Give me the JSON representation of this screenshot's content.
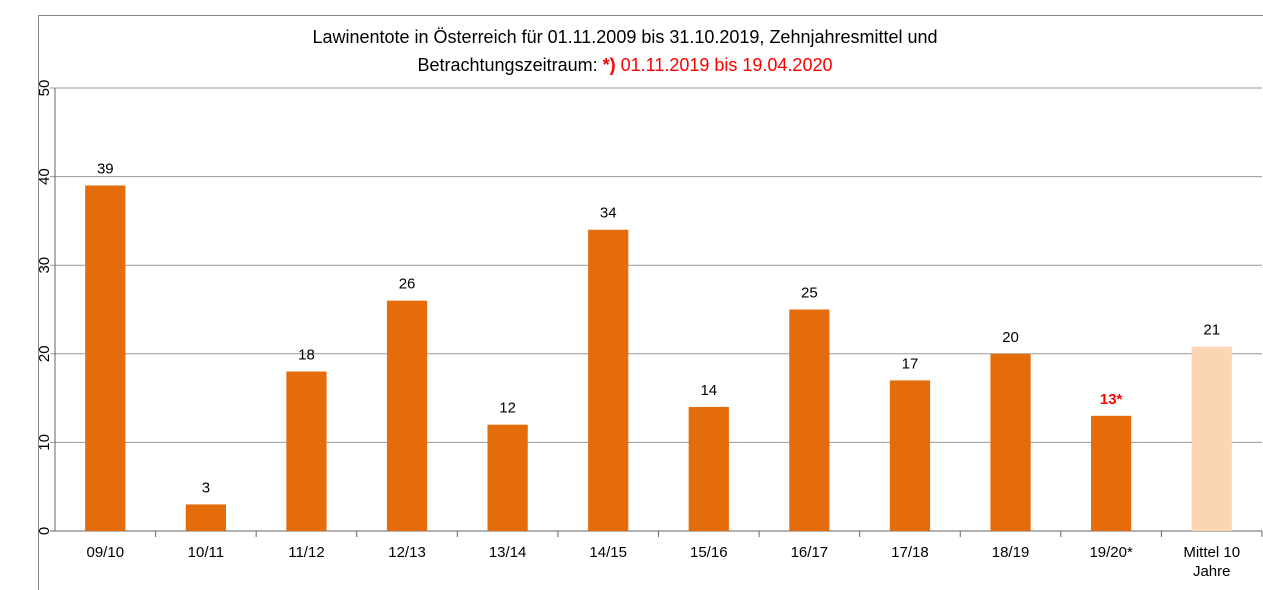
{
  "chart_data": {
    "type": "bar",
    "title": [
      "Lawinentote in Österreich für 01.11.2009 bis 31.10.2019, Zehnjahresmittel und",
      "Betrachtungszeitraum:"
    ],
    "note": {
      "marker": "*)",
      "text": "01.11.2019 bis 19.04.2020",
      "color": "#ff0000"
    },
    "categories": [
      "09/10",
      "10/11",
      "11/12",
      "12/13",
      "13/14",
      "14/15",
      "15/16",
      "16/17",
      "17/18",
      "18/19",
      "19/20*",
      "Mittel 10 Jahre"
    ],
    "values": [
      39,
      3,
      18,
      26,
      12,
      34,
      14,
      25,
      17,
      20,
      13,
      20.8
    ],
    "value_labels": [
      "39",
      "3",
      "18",
      "26",
      "12",
      "34",
      "14",
      "25",
      "17",
      "20",
      "13*",
      "21"
    ],
    "colors": [
      "#e46c0a",
      "#e46c0a",
      "#e46c0a",
      "#e46c0a",
      "#e46c0a",
      "#e46c0a",
      "#e46c0a",
      "#e46c0a",
      "#e46c0a",
      "#e46c0a",
      "#e46c0a",
      "#fcd5b5"
    ],
    "value_label_colors": [
      "#000000",
      "#000000",
      "#000000",
      "#000000",
      "#000000",
      "#000000",
      "#000000",
      "#000000",
      "#000000",
      "#000000",
      "#ff0000",
      "#000000"
    ],
    "ylim": [
      0,
      50
    ],
    "yticks": [
      0,
      10,
      20,
      30,
      40,
      50
    ],
    "grid": true
  }
}
